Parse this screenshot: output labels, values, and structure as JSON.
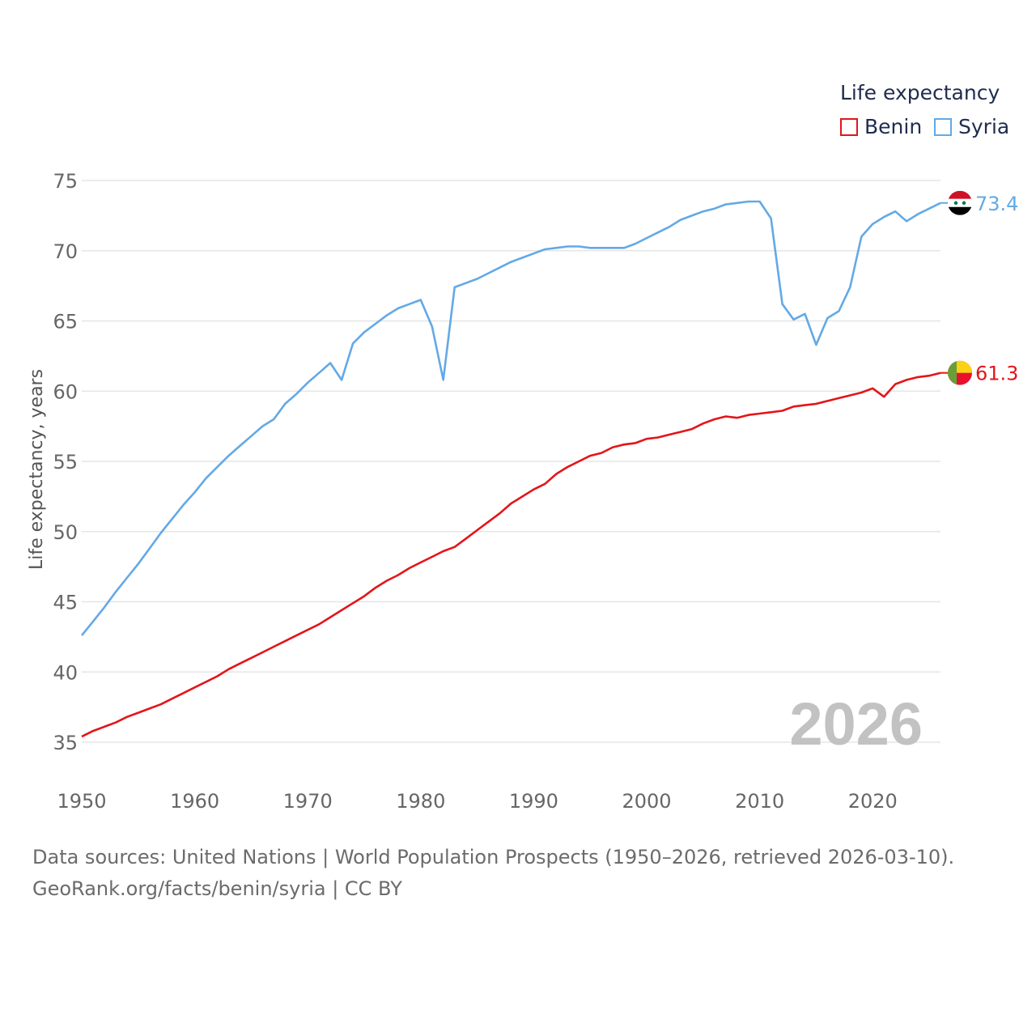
{
  "legend": {
    "title": "Life expectancy",
    "items": [
      {
        "label": "Benin",
        "color": "#e3151a"
      },
      {
        "label": "Syria",
        "color": "#63a9e6"
      }
    ]
  },
  "year_watermark": "2026",
  "source": {
    "line1": "Data sources: United Nations | World Population Prospects (1950–2026, retrieved 2026-03-10).",
    "line2": "GeoRank.org/facts/benin/syria | CC BY"
  },
  "chart_data": {
    "type": "line",
    "title": "",
    "xlabel": "",
    "ylabel": "Life expectancy, years",
    "xlim": [
      1950,
      2026
    ],
    "ylim": [
      33,
      76
    ],
    "yticks": [
      35,
      40,
      45,
      50,
      55,
      60,
      65,
      70,
      75
    ],
    "xticks": [
      1950,
      1960,
      1970,
      1980,
      1990,
      2000,
      2010,
      2020
    ],
    "grid": true,
    "x": [
      1950,
      1951,
      1952,
      1953,
      1954,
      1955,
      1956,
      1957,
      1958,
      1959,
      1960,
      1961,
      1962,
      1963,
      1964,
      1965,
      1966,
      1967,
      1968,
      1969,
      1970,
      1971,
      1972,
      1973,
      1974,
      1975,
      1976,
      1977,
      1978,
      1979,
      1980,
      1981,
      1982,
      1983,
      1984,
      1985,
      1986,
      1987,
      1988,
      1989,
      1990,
      1991,
      1992,
      1993,
      1994,
      1995,
      1996,
      1997,
      1998,
      1999,
      2000,
      2001,
      2002,
      2003,
      2004,
      2005,
      2006,
      2007,
      2008,
      2009,
      2010,
      2011,
      2012,
      2013,
      2014,
      2015,
      2016,
      2017,
      2018,
      2019,
      2020,
      2021,
      2022,
      2023,
      2024,
      2025,
      2026
    ],
    "series": [
      {
        "name": "Benin",
        "color": "#e3151a",
        "end_label": "61.3",
        "values": [
          35.4,
          35.8,
          36.1,
          36.4,
          36.8,
          37.1,
          37.4,
          37.7,
          38.1,
          38.5,
          38.9,
          39.3,
          39.7,
          40.2,
          40.6,
          41.0,
          41.4,
          41.8,
          42.2,
          42.6,
          43.0,
          43.4,
          43.9,
          44.4,
          44.9,
          45.4,
          46.0,
          46.5,
          46.9,
          47.4,
          47.8,
          48.2,
          48.6,
          48.9,
          49.5,
          50.1,
          50.7,
          51.3,
          52.0,
          52.5,
          53.0,
          53.4,
          54.1,
          54.6,
          55.0,
          55.4,
          55.6,
          56.0,
          56.2,
          56.3,
          56.6,
          56.7,
          56.9,
          57.1,
          57.3,
          57.7,
          58.0,
          58.2,
          58.1,
          58.3,
          58.4,
          58.5,
          58.6,
          58.9,
          59.0,
          59.1,
          59.3,
          59.5,
          59.7,
          59.9,
          60.2,
          59.6,
          60.5,
          60.8,
          61.0,
          61.1,
          61.3
        ]
      },
      {
        "name": "Syria",
        "color": "#63a9e6",
        "end_label": "73.4",
        "values": [
          42.6,
          43.6,
          44.6,
          45.7,
          46.7,
          47.7,
          48.8,
          49.9,
          50.9,
          51.9,
          52.8,
          53.8,
          54.6,
          55.4,
          56.1,
          56.8,
          57.5,
          58.0,
          59.1,
          59.8,
          60.6,
          61.3,
          62.0,
          60.8,
          63.4,
          64.2,
          64.8,
          65.4,
          65.9,
          66.2,
          66.5,
          64.6,
          60.8,
          67.4,
          67.7,
          68.0,
          68.4,
          68.8,
          69.2,
          69.5,
          69.8,
          70.1,
          70.2,
          70.3,
          70.3,
          70.2,
          70.2,
          70.2,
          70.2,
          70.5,
          70.9,
          71.3,
          71.7,
          72.2,
          72.5,
          72.8,
          73.0,
          73.3,
          73.4,
          73.5,
          73.5,
          72.3,
          66.2,
          65.1,
          65.5,
          63.3,
          65.2,
          65.7,
          67.4,
          71.0,
          71.9,
          72.4,
          72.8,
          72.1,
          72.6,
          73.0,
          73.4
        ]
      }
    ]
  }
}
